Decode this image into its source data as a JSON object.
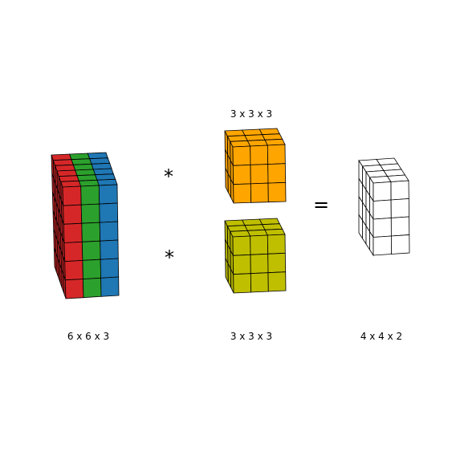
{
  "labels": {
    "input_dims": "6 x 6 x 3",
    "kernel_top_dims": "3 x 3 x 3",
    "kernel_bottom_dims": "3 x 3 x 3",
    "output_dims": "4 x 4 x 2"
  },
  "operators": {
    "conv_top": "*",
    "conv_bottom": "*",
    "equals": "="
  },
  "colors": {
    "input_channels": [
      "#d62728",
      "#2ca02c",
      "#1f77b4"
    ],
    "kernel_top": "#ffa500",
    "kernel_bottom": "#bfbf00",
    "output": "#ffffff",
    "edge": "#000000"
  },
  "blocks": {
    "input": {
      "rows": 6,
      "cols": 6,
      "depth": 3
    },
    "kernel_top": {
      "rows": 3,
      "cols": 3,
      "depth": 3
    },
    "kernel_bottom": {
      "rows": 3,
      "cols": 3,
      "depth": 3
    },
    "output": {
      "rows": 4,
      "cols": 4,
      "depth": 2
    }
  }
}
